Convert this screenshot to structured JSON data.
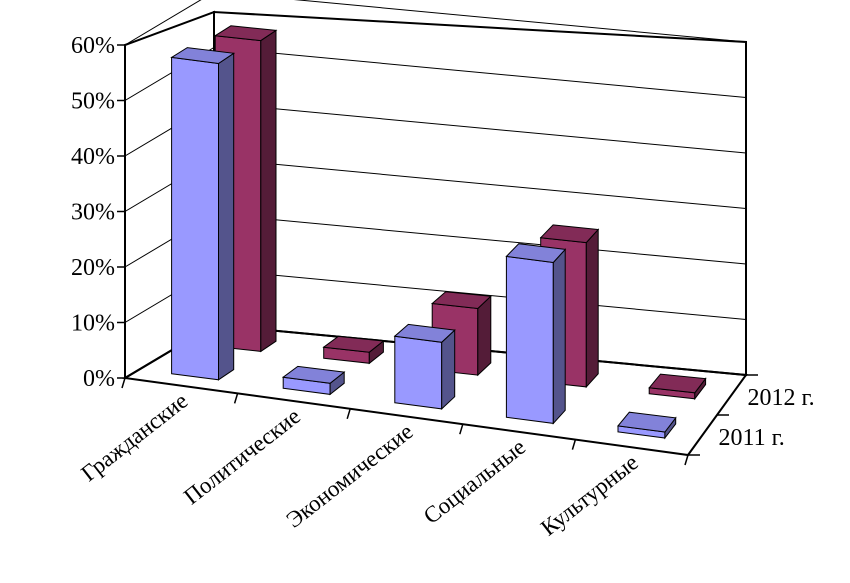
{
  "chart_data": {
    "type": "bar",
    "subtype": "3d-clustered-rows",
    "categories": [
      "Гражданские",
      "Политические",
      "Экономические",
      "Социальные",
      "Культурные"
    ],
    "series": [
      {
        "name": "2011 г.",
        "values": [
          57,
          2,
          12,
          29,
          1
        ],
        "color": "#9999ff"
      },
      {
        "name": "2012 г.",
        "values": [
          56,
          2,
          12,
          26,
          1
        ],
        "color": "#993366"
      }
    ],
    "ylim": [
      0,
      60
    ],
    "y_ticks": [
      "0%",
      "10%",
      "20%",
      "30%",
      "40%",
      "50%",
      "60%"
    ],
    "y_unit": "%",
    "grid": true,
    "legend": "series labels on depth axis (right)"
  }
}
